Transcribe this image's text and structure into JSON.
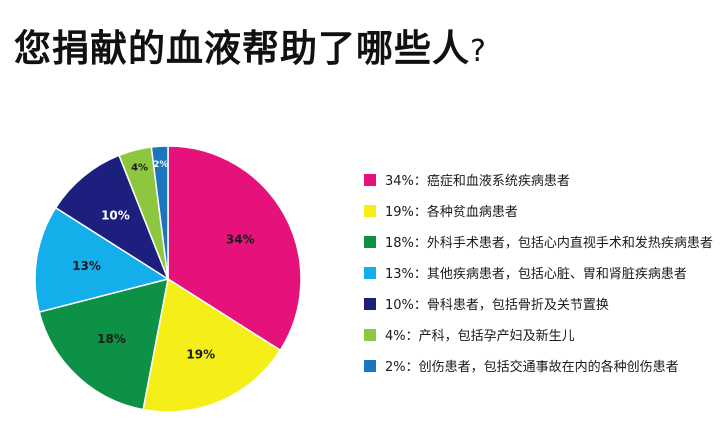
{
  "title": {
    "main": "您捐献的血液帮助了哪些人",
    "qmark": "?"
  },
  "chart_data": {
    "type": "pie",
    "title": "您捐献的血液帮助了哪些人?",
    "slices": [
      {
        "value": 34,
        "label": "34%",
        "legend": "34%：癌症和血液系统疾病患者",
        "color": "#E4127A"
      },
      {
        "value": 19,
        "label": "19%",
        "legend": "19%：各种贫血病患者",
        "color": "#F5EE19"
      },
      {
        "value": 18,
        "label": "18%",
        "legend": "18%：外科手术患者，包括心内直视手术和发热疾病患者",
        "color": "#0D9146"
      },
      {
        "value": 13,
        "label": "13%",
        "legend": "13%：其他疾病患者，包括心脏、胃和肾脏疾病患者",
        "color": "#14AEEA"
      },
      {
        "value": 10,
        "label": "10%",
        "legend": "10%：骨科患者，包括骨折及关节置换",
        "color": "#1D1F7E"
      },
      {
        "value": 4,
        "label": "4%",
        "legend": "4%：产科，包括孕产妇及新生儿",
        "color": "#8DC73F"
      },
      {
        "value": 2,
        "label": "2%",
        "legend": "2%：创伤患者，包括交通事故在内的各种创伤患者",
        "color": "#1B76BE"
      }
    ],
    "start": "12 o'clock",
    "direction": "clockwise",
    "legend_position": "right"
  }
}
